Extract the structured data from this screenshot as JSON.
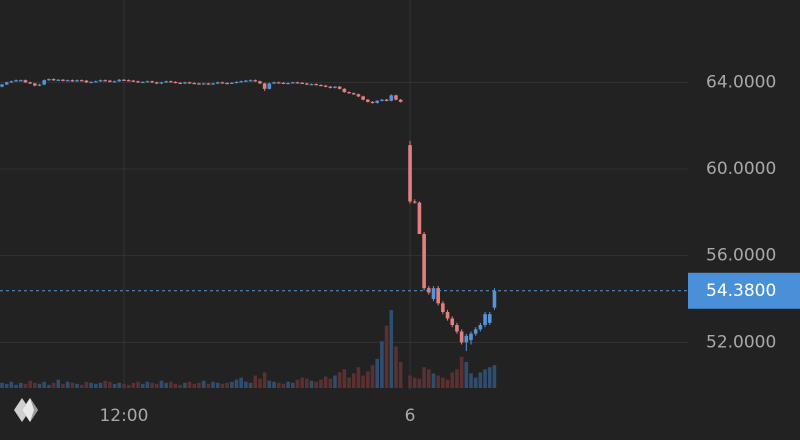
{
  "chart_data": {
    "type": "candlestick",
    "categories": [
      null,
      null,
      null,
      null,
      null,
      null,
      null,
      null,
      null,
      null,
      null,
      null,
      null,
      null,
      null,
      null,
      null,
      null,
      null,
      null,
      null,
      null,
      null,
      null,
      null,
      null,
      "12:00",
      null,
      null,
      null,
      null,
      null,
      null,
      null,
      null,
      null,
      null,
      null,
      null,
      null,
      null,
      null,
      null,
      null,
      null,
      null,
      null,
      null,
      null,
      null,
      null,
      null,
      null,
      null,
      null,
      null,
      null,
      null,
      null,
      null,
      null,
      null,
      null,
      null,
      null,
      null,
      null,
      null,
      null,
      null,
      null,
      null,
      null,
      null,
      null,
      null,
      null,
      null,
      null,
      null,
      null,
      null,
      null,
      null,
      null,
      null,
      null,
      "6",
      null,
      null,
      null,
      null,
      null,
      null,
      null,
      null,
      null,
      null,
      null,
      null,
      null,
      null,
      null,
      null,
      null,
      null
    ],
    "ohlc": [
      [
        63.8,
        63.93,
        63.77,
        63.9
      ],
      [
        63.9,
        64.03,
        63.87,
        64.0
      ],
      [
        64.0,
        64.08,
        63.97,
        64.05
      ],
      [
        64.05,
        64.13,
        64.02,
        64.1
      ],
      [
        64.1,
        64.13,
        64.07,
        64.1
      ],
      [
        64.1,
        64.13,
        63.97,
        64.0
      ],
      [
        64.0,
        64.03,
        63.92,
        63.95
      ],
      [
        63.95,
        63.98,
        63.82,
        63.85
      ],
      [
        63.85,
        63.93,
        63.82,
        63.9
      ],
      [
        63.9,
        64.13,
        63.87,
        64.1
      ],
      [
        64.1,
        64.18,
        64.07,
        64.15
      ],
      [
        64.15,
        64.18,
        64.07,
        64.1
      ],
      [
        64.1,
        64.15,
        64.07,
        64.12
      ],
      [
        64.12,
        64.15,
        64.05,
        64.08
      ],
      [
        64.08,
        64.13,
        64.05,
        64.1
      ],
      [
        64.1,
        64.13,
        64.02,
        64.05
      ],
      [
        64.05,
        64.13,
        64.02,
        64.1
      ],
      [
        64.1,
        64.13,
        64.05,
        64.08
      ],
      [
        64.08,
        64.11,
        63.97,
        64.0
      ],
      [
        64.0,
        64.05,
        63.97,
        64.02
      ],
      [
        64.02,
        64.08,
        63.99,
        64.05
      ],
      [
        64.05,
        64.13,
        64.02,
        64.1
      ],
      [
        64.1,
        64.13,
        64.05,
        64.08
      ],
      [
        64.08,
        64.11,
        63.99,
        64.02
      ],
      [
        64.02,
        64.08,
        63.99,
        64.05
      ],
      [
        64.05,
        64.15,
        64.02,
        64.12
      ],
      [
        64.12,
        64.15,
        64.07,
        64.1
      ],
      [
        64.1,
        64.13,
        64.05,
        64.08
      ],
      [
        64.08,
        64.11,
        64.02,
        64.05
      ],
      [
        64.05,
        64.08,
        63.97,
        64.0
      ],
      [
        64.0,
        64.05,
        63.97,
        64.02
      ],
      [
        64.02,
        64.08,
        63.99,
        64.05
      ],
      [
        64.05,
        64.08,
        63.97,
        64.0
      ],
      [
        64.0,
        64.03,
        63.92,
        63.95
      ],
      [
        63.95,
        64.03,
        63.92,
        64.0
      ],
      [
        64.0,
        64.08,
        63.97,
        64.05
      ],
      [
        64.05,
        64.08,
        63.99,
        64.02
      ],
      [
        64.02,
        64.05,
        63.95,
        63.98
      ],
      [
        63.98,
        64.01,
        63.92,
        63.95
      ],
      [
        63.95,
        64.03,
        63.92,
        64.0
      ],
      [
        64.0,
        64.03,
        63.94,
        63.97
      ],
      [
        63.97,
        64.0,
        63.92,
        63.95
      ],
      [
        63.95,
        63.98,
        63.9,
        63.93
      ],
      [
        63.93,
        63.98,
        63.9,
        63.95
      ],
      [
        63.95,
        63.98,
        63.89,
        63.92
      ],
      [
        63.92,
        63.98,
        63.89,
        63.95
      ],
      [
        63.95,
        64.03,
        63.92,
        64.0
      ],
      [
        64.0,
        64.03,
        63.94,
        63.97
      ],
      [
        63.97,
        64.0,
        63.92,
        63.95
      ],
      [
        63.95,
        64.01,
        63.92,
        63.98
      ],
      [
        63.98,
        64.05,
        63.95,
        64.02
      ],
      [
        64.02,
        64.08,
        63.99,
        64.05
      ],
      [
        64.05,
        64.11,
        64.02,
        64.08
      ],
      [
        64.08,
        64.13,
        64.05,
        64.1
      ],
      [
        64.1,
        64.13,
        64.02,
        64.05
      ],
      [
        64.05,
        64.08,
        63.92,
        63.95
      ],
      [
        63.95,
        63.98,
        63.6,
        63.7
      ],
      [
        63.7,
        63.98,
        63.67,
        63.95
      ],
      [
        63.95,
        64.03,
        63.92,
        64.0
      ],
      [
        64.0,
        64.03,
        63.95,
        63.98
      ],
      [
        63.98,
        64.01,
        63.92,
        63.95
      ],
      [
        63.95,
        64.0,
        63.92,
        63.97
      ],
      [
        63.97,
        64.03,
        63.94,
        64.0
      ],
      [
        64.0,
        64.03,
        63.95,
        63.98
      ],
      [
        63.98,
        64.01,
        63.92,
        63.95
      ],
      [
        63.95,
        63.98,
        63.87,
        63.9
      ],
      [
        63.9,
        63.95,
        63.87,
        63.92
      ],
      [
        63.92,
        63.95,
        63.85,
        63.88
      ],
      [
        63.88,
        63.91,
        63.82,
        63.85
      ],
      [
        63.85,
        63.88,
        63.77,
        63.8
      ],
      [
        63.8,
        63.83,
        63.72,
        63.75
      ],
      [
        63.75,
        63.83,
        63.72,
        63.8
      ],
      [
        63.8,
        63.83,
        63.67,
        63.7
      ],
      [
        63.7,
        63.73,
        63.52,
        63.55
      ],
      [
        63.55,
        63.58,
        63.47,
        63.5
      ],
      [
        63.5,
        63.53,
        63.42,
        63.45
      ],
      [
        63.45,
        63.48,
        63.32,
        63.35
      ],
      [
        63.35,
        63.38,
        63.17,
        63.2
      ],
      [
        63.2,
        63.23,
        63.07,
        63.1
      ],
      [
        63.1,
        63.13,
        63.02,
        63.05
      ],
      [
        63.05,
        63.18,
        63.02,
        63.15
      ],
      [
        63.15,
        63.23,
        63.12,
        63.2
      ],
      [
        63.2,
        63.23,
        63.12,
        63.15
      ],
      [
        63.15,
        63.45,
        63.12,
        63.4
      ],
      [
        63.4,
        63.43,
        63.17,
        63.2
      ],
      [
        63.2,
        63.23,
        63.07,
        63.1
      ],
      null,
      [
        61.1,
        61.3,
        58.4,
        58.5
      ],
      [
        58.5,
        58.6,
        58.4,
        58.45
      ],
      [
        58.45,
        58.5,
        57.0,
        57.0
      ],
      [
        57.0,
        57.1,
        54.4,
        54.5
      ],
      [
        54.5,
        54.6,
        54.2,
        54.3
      ],
      [
        54.0,
        54.6,
        53.9,
        54.5
      ],
      [
        54.5,
        54.6,
        53.7,
        53.8
      ],
      [
        53.8,
        53.9,
        53.3,
        53.4
      ],
      [
        53.4,
        53.5,
        53.0,
        53.1
      ],
      [
        53.1,
        53.2,
        52.7,
        52.8
      ],
      [
        52.8,
        52.9,
        52.4,
        52.5
      ],
      [
        52.5,
        52.6,
        51.9,
        52.0
      ],
      [
        52.0,
        52.4,
        51.6,
        52.3
      ],
      [
        52.1,
        52.5,
        51.9,
        52.4
      ],
      [
        52.4,
        52.7,
        52.3,
        52.6
      ],
      [
        52.6,
        52.9,
        52.5,
        52.8
      ],
      [
        52.8,
        53.4,
        52.7,
        53.3
      ],
      [
        52.9,
        53.4,
        52.8,
        53.3
      ],
      [
        53.6,
        54.5,
        53.5,
        54.38
      ]
    ],
    "volume": [
      5,
      4,
      6,
      3,
      5,
      4,
      7,
      5,
      4,
      6,
      3,
      5,
      8,
      4,
      6,
      5,
      4,
      3,
      6,
      5,
      4,
      5,
      7,
      6,
      4,
      5,
      4,
      3,
      5,
      6,
      4,
      6,
      5,
      4,
      7,
      5,
      6,
      4,
      3,
      5,
      6,
      4,
      5,
      7,
      4,
      6,
      5,
      4,
      5,
      6,
      8,
      10,
      6,
      5,
      12,
      9,
      15,
      7,
      6,
      5,
      4,
      6,
      5,
      8,
      10,
      9,
      7,
      6,
      8,
      11,
      9,
      12,
      15,
      18,
      10,
      14,
      20,
      12,
      16,
      22,
      28,
      45,
      60,
      75,
      40,
      25,
      null,
      12,
      10,
      9,
      20,
      18,
      14,
      12,
      10,
      8,
      15,
      18,
      30,
      25,
      14,
      10,
      15,
      18,
      20,
      22
    ],
    "ylim": [
      49.8,
      67.8
    ],
    "yticks": [
      {
        "value": 52,
        "label": "52.0000"
      },
      {
        "value": 56,
        "label": "56.0000"
      },
      {
        "value": 60,
        "label": "60.0000"
      },
      {
        "value": 64,
        "label": "64.0000"
      }
    ],
    "last_price": {
      "value": 54.38,
      "label": "54.3800"
    },
    "up_color": "#5594d8",
    "down_color": "#e47f7f",
    "grid": true
  }
}
